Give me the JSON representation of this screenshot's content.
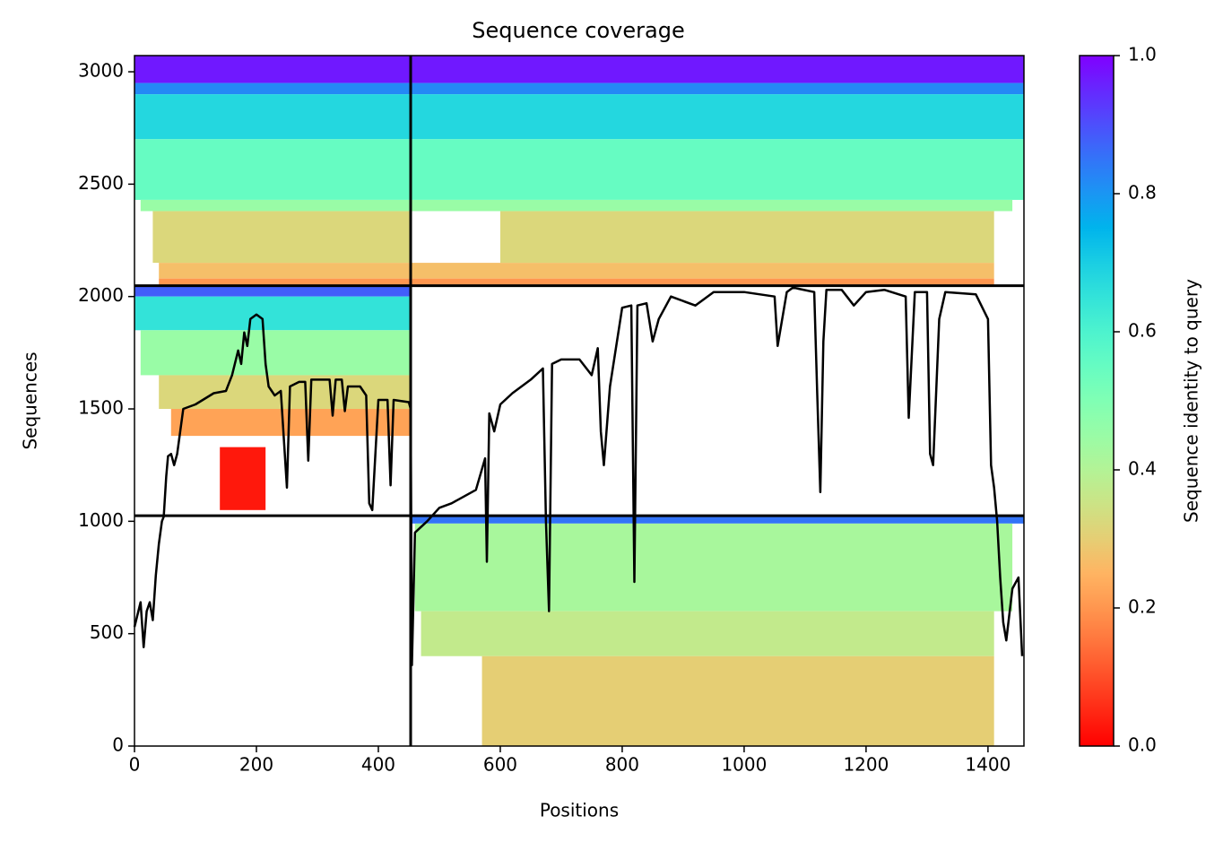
{
  "chart_data": {
    "type": "coverage",
    "title": "Sequence coverage",
    "xlabel": "Positions",
    "ylabel": "Sequences",
    "colorbar_label": "Sequence identity to query",
    "xlim": [
      0,
      1459
    ],
    "ylim": [
      0,
      3072
    ],
    "xticks": [
      0,
      200,
      400,
      600,
      800,
      1000,
      1200,
      1400
    ],
    "yticks": [
      0,
      500,
      1000,
      1500,
      2000,
      2500,
      3000
    ],
    "colorbar_lim": [
      0,
      1
    ],
    "colorbar_ticks": [
      {
        "value": 0,
        "label": "0.0"
      },
      0.2,
      0.4,
      0.6,
      0.8,
      {
        "value": 1,
        "label": "1.0"
      }
    ],
    "boundaries_x": [
      453
    ],
    "boundaries_y": [
      1025,
      2048
    ],
    "bands": [
      {
        "x0": 0,
        "x1": 1459,
        "y0": 2950,
        "y1": 3072,
        "identity": 0.97
      },
      {
        "x0": 0,
        "x1": 1459,
        "y0": 2900,
        "y1": 2950,
        "identity": 0.82
      },
      {
        "x0": 0,
        "x1": 1459,
        "y0": 2700,
        "y1": 2900,
        "identity": 0.68
      },
      {
        "x0": 0,
        "x1": 1459,
        "y0": 2430,
        "y1": 2700,
        "identity": 0.55
      },
      {
        "x0": 10,
        "x1": 1440,
        "y0": 2380,
        "y1": 2430,
        "identity": 0.45
      },
      {
        "x0": 30,
        "x1": 453,
        "y0": 2150,
        "y1": 2380,
        "identity": 0.32
      },
      {
        "x0": 600,
        "x1": 1410,
        "y0": 2150,
        "y1": 2380,
        "identity": 0.32
      },
      {
        "x0": 40,
        "x1": 1410,
        "y0": 2080,
        "y1": 2150,
        "identity": 0.27
      },
      {
        "x0": 40,
        "x1": 1410,
        "y0": 2048,
        "y1": 2080,
        "identity": 0.2
      },
      {
        "x0": 0,
        "x1": 453,
        "y0": 2000,
        "y1": 2048,
        "identity": 0.88
      },
      {
        "x0": 0,
        "x1": 453,
        "y0": 1850,
        "y1": 2000,
        "identity": 0.65
      },
      {
        "x0": 10,
        "x1": 453,
        "y0": 1650,
        "y1": 1850,
        "identity": 0.45
      },
      {
        "x0": 40,
        "x1": 453,
        "y0": 1500,
        "y1": 1650,
        "identity": 0.32
      },
      {
        "x0": 60,
        "x1": 453,
        "y0": 1380,
        "y1": 1500,
        "identity": 0.22
      },
      {
        "x0": 140,
        "x1": 215,
        "y0": 1050,
        "y1": 1330,
        "identity": 0.03
      },
      {
        "x0": 453,
        "x1": 1459,
        "y0": 990,
        "y1": 1025,
        "identity": 0.85
      },
      {
        "x0": 460,
        "x1": 1440,
        "y0": 600,
        "y1": 990,
        "identity": 0.42
      },
      {
        "x0": 470,
        "x1": 1410,
        "y0": 400,
        "y1": 600,
        "identity": 0.37
      },
      {
        "x0": 570,
        "x1": 1410,
        "y0": 0,
        "y1": 400,
        "identity": 0.3
      }
    ],
    "coverage": {
      "color": "#000000",
      "x": [
        0,
        10,
        15,
        20,
        25,
        30,
        35,
        40,
        45,
        48,
        52,
        55,
        60,
        65,
        70,
        75,
        80,
        100,
        130,
        150,
        160,
        170,
        175,
        180,
        185,
        190,
        200,
        210,
        215,
        220,
        230,
        240,
        250,
        255,
        270,
        280,
        285,
        290,
        320,
        325,
        330,
        340,
        345,
        350,
        370,
        380,
        385,
        390,
        400,
        415,
        420,
        425,
        450,
        453,
        455,
        460,
        480,
        500,
        520,
        540,
        560,
        575,
        578,
        582,
        590,
        600,
        620,
        650,
        670,
        675,
        680,
        685,
        700,
        730,
        750,
        760,
        765,
        770,
        780,
        800,
        815,
        820,
        825,
        840,
        850,
        860,
        880,
        920,
        950,
        1000,
        1050,
        1055,
        1070,
        1080,
        1115,
        1120,
        1125,
        1130,
        1135,
        1160,
        1180,
        1200,
        1230,
        1265,
        1270,
        1280,
        1300,
        1305,
        1310,
        1320,
        1330,
        1380,
        1400,
        1405,
        1410,
        1415,
        1420,
        1425,
        1430,
        1440,
        1450,
        1456
      ],
      "values": [
        530,
        640,
        440,
        600,
        640,
        560,
        760,
        900,
        1000,
        1020,
        1200,
        1290,
        1300,
        1250,
        1300,
        1400,
        1500,
        1520,
        1570,
        1580,
        1650,
        1760,
        1700,
        1840,
        1780,
        1900,
        1920,
        1900,
        1700,
        1600,
        1560,
        1580,
        1150,
        1600,
        1620,
        1620,
        1270,
        1630,
        1630,
        1470,
        1630,
        1630,
        1490,
        1600,
        1600,
        1560,
        1080,
        1050,
        1540,
        1540,
        1160,
        1540,
        1530,
        1500,
        360,
        950,
        1000,
        1060,
        1080,
        1110,
        1140,
        1280,
        820,
        1480,
        1400,
        1520,
        1570,
        1630,
        1680,
        1000,
        600,
        1700,
        1720,
        1720,
        1650,
        1770,
        1400,
        1250,
        1600,
        1950,
        1960,
        730,
        1960,
        1970,
        1800,
        1900,
        2000,
        1960,
        2020,
        2020,
        2000,
        1780,
        2020,
        2040,
        2020,
        1560,
        1130,
        1800,
        2030,
        2030,
        1960,
        2020,
        2030,
        2000,
        1460,
        2020,
        2020,
        1300,
        1250,
        1900,
        2020,
        2010,
        1900,
        1250,
        1150,
        1000,
        750,
        550,
        470,
        700,
        750,
        400
      ]
    }
  }
}
